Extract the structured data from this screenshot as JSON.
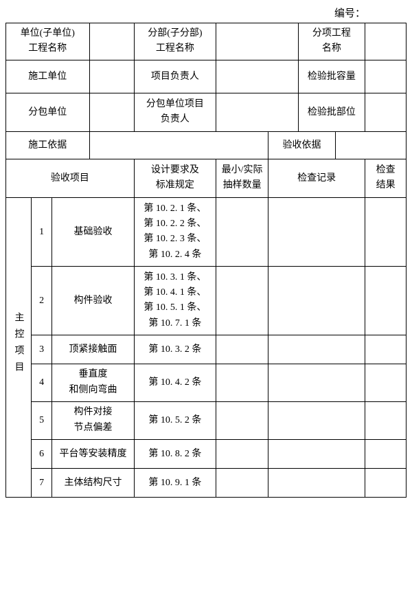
{
  "serial_label": "编号：",
  "header": {
    "r1": {
      "c1": "单位(子单位)\n工程名称",
      "c2": "",
      "c3": "分部(子分部)\n工程名称",
      "c4": "",
      "c5": "分项工程\n名称",
      "c6": ""
    },
    "r2": {
      "c1": "施工单位",
      "c2": "",
      "c3": "项目负责人",
      "c4": "",
      "c5": "检验批容量",
      "c6": ""
    },
    "r3": {
      "c1": "分包单位",
      "c2": "",
      "c3": "分包单位项目\n负责人",
      "c4": "",
      "c5": "检验批部位",
      "c6": ""
    },
    "r4": {
      "c1": "施工依据",
      "c2": "",
      "c3": "验收依据",
      "c4": ""
    }
  },
  "columns": {
    "inspect_item": "验收项目",
    "design_req": "设计要求及\n标准规定",
    "sample_qty": "最小/实际\n抽样数量",
    "check_record": "检查记录",
    "check_result": "检查\n结果"
  },
  "group_label": "主控项目",
  "rows": [
    {
      "no": "1",
      "item": "基础验收",
      "req": "第 10. 2. 1 条、\n第 10. 2. 2 条、\n第 10. 2. 3 条、\n第 10. 2. 4 条"
    },
    {
      "no": "2",
      "item": "构件验收",
      "req": "第 10. 3. 1 条、\n第 10. 4. 1 条、\n第 10. 5. 1 条、\n第 10. 7. 1 条"
    },
    {
      "no": "3",
      "item": "顶紧接触面",
      "req": "第 10. 3. 2 条"
    },
    {
      "no": "4",
      "item": "垂直度\n和侧向弯曲",
      "req": "第 10. 4. 2 条"
    },
    {
      "no": "5",
      "item": "构件对接\n节点偏差",
      "req": "第 10. 5. 2 条"
    },
    {
      "no": "6",
      "item": "平台等安装精度",
      "req": "第 10. 8. 2 条"
    },
    {
      "no": "7",
      "item": "主体结构尺寸",
      "req": "第 10. 9. 1 条"
    }
  ]
}
